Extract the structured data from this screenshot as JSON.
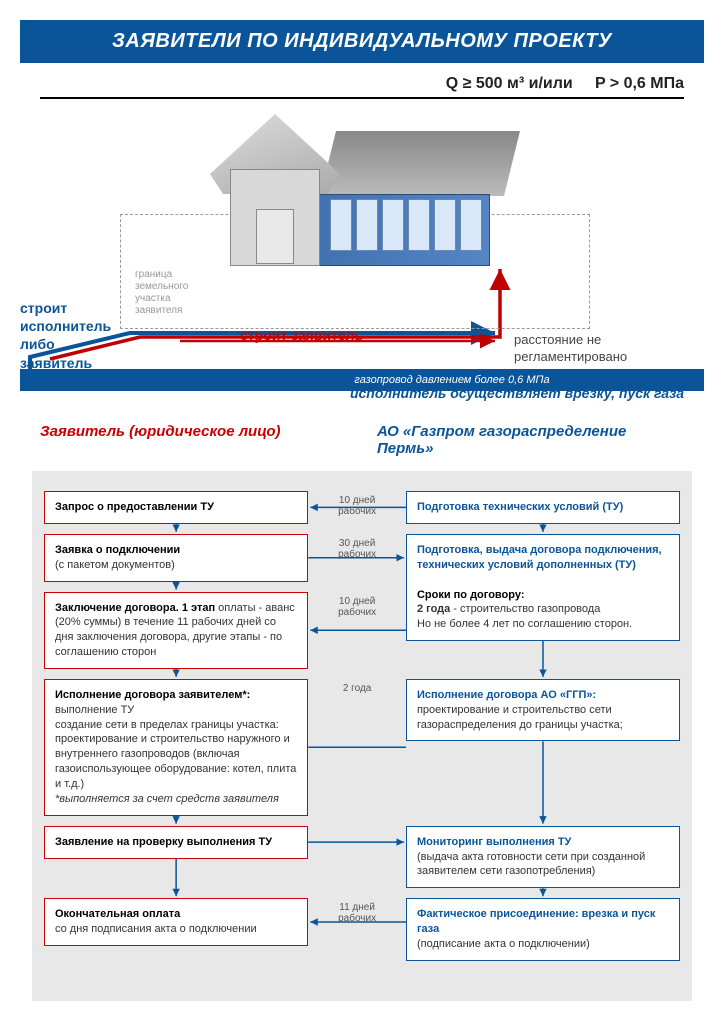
{
  "title": "ЗАЯВИТЕЛИ ПО ИНДИВИДУАЛЬНОМУ ПРОЕКТУ",
  "params": {
    "q": "Q ≥ 500 м³  и/или",
    "p": "P > 0,6 МПа"
  },
  "diagram": {
    "boundary_label": "граница земельного участка заявителя",
    "left_label": "строит исполнитель либо заявитель",
    "red_label": "строит  заявитель",
    "dist_label": "расстояние не регламентировано",
    "band": "газопровод давлением более  0,6  МПа",
    "exec_note": "исполнитель осуществляет врезку, пуск газа"
  },
  "colors": {
    "blue": "#0a5599",
    "red": "#c00000",
    "bg_flow": "#e8e8e8",
    "arrow_blue": "#0a5599",
    "arrow_red": "#c00000"
  },
  "columns": {
    "left": "Заявитель (юридическое лицо)",
    "right": "АО «Газпром газораспределение Пермь»"
  },
  "flow": {
    "rows": [
      {
        "left": {
          "title": "Запрос о предоставлении ТУ",
          "body": ""
        },
        "mid": {
          "label": "10 дней рабочих",
          "dir": "left"
        },
        "right": {
          "title": "Подготовка технических условий  (ТУ)",
          "body": ""
        }
      },
      {
        "left": {
          "title": "Заявка о подключении",
          "body": "(с пакетом документов)"
        },
        "mid": {
          "label": "30 дней рабочих",
          "dir": "right"
        },
        "right": {
          "title": "Подготовка, выдача договора подключения, технических условий дополненных (ТУ)",
          "body": ""
        }
      },
      {
        "left": {
          "title": "Заключение договора. 1 этап",
          "body": "оплаты - аванс (20% суммы) в течение 11 рабочих дней со дня заключения договора, другие этапы - по соглашению сторон",
          "inline": true
        },
        "mid": {
          "label": "10 дней рабочих",
          "dir": "left"
        },
        "right": {
          "plain_title": "Сроки по договору:",
          "body": "<b>2 года</b>   - строительство газопровода<br>Но не более 4 лет по соглашению сторон.",
          "noborder_top": true
        }
      },
      {
        "left": {
          "title": "Исполнение договора заявителем*:",
          "body": "выполнение ТУ<br>создание сети в пределах границы участка: проектирование и строительство наружного и внутреннего газопроводов (включая газоиспользующее оборудование: котел, плита и т.д.)<br><i>*выполняется за счет средств заявителя</i>"
        },
        "mid": {
          "label": "2 года",
          "dir": "both"
        },
        "right": {
          "title": "Исполнение договора АО «ГГП»:",
          "body": "проектирование и строительство сети газораспределения до границы участка;"
        }
      },
      {
        "left": {
          "title": "Заявление на проверку выполнения ТУ",
          "body": ""
        },
        "mid": {
          "label": "",
          "dir": "right"
        },
        "right": {
          "title": "Мониторинг выполнения ТУ",
          "body": "(выдача акта готовности сети при созданной заявителем сети газопотребления)"
        }
      },
      {
        "left": {
          "title": "Окончательная оплата",
          "body": "со дня подписания акта о подключении"
        },
        "mid": {
          "label": "11 дней рабочих",
          "dir": "left"
        },
        "right": {
          "title": "Фактическое присоединение: врезка и пуск газа",
          "body": "(подписание акта о подключении)"
        }
      }
    ]
  }
}
